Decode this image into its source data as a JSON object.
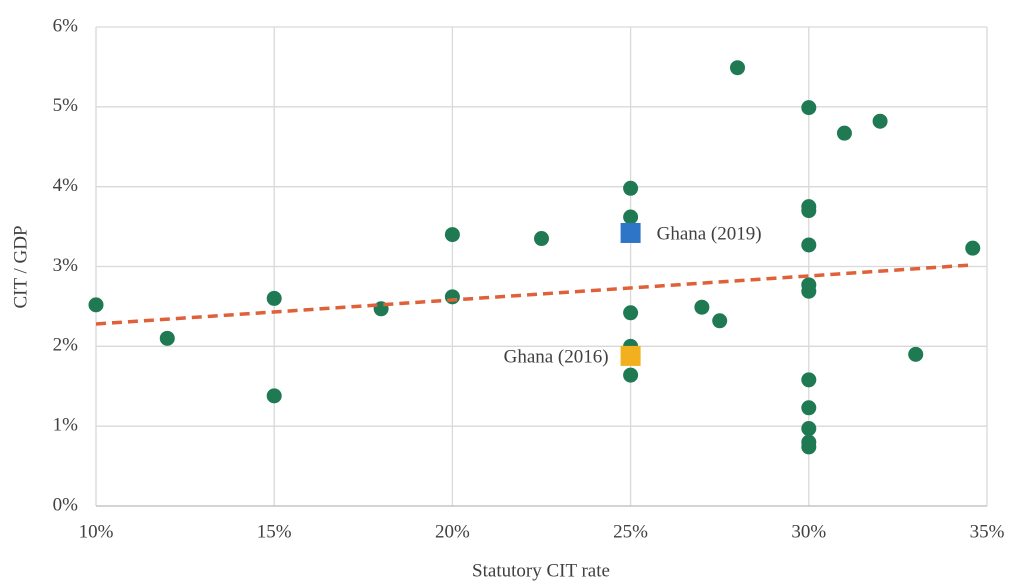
{
  "chart_data": {
    "type": "scatter",
    "xlabel": "Statutory CIT rate",
    "ylabel": "CIT / GDP",
    "xlim": [
      10,
      35
    ],
    "ylim": [
      0,
      6
    ],
    "xticks": [
      {
        "value": 10,
        "label": "10%"
      },
      {
        "value": 15,
        "label": "15%"
      },
      {
        "value": 20,
        "label": "20%"
      },
      {
        "value": 25,
        "label": "25%"
      },
      {
        "value": 30,
        "label": "30%"
      },
      {
        "value": 35,
        "label": "35%"
      }
    ],
    "yticks": [
      {
        "value": 0,
        "label": "0%"
      },
      {
        "value": 1,
        "label": "1%"
      },
      {
        "value": 2,
        "label": "2%"
      },
      {
        "value": 3,
        "label": "3%"
      },
      {
        "value": 4,
        "label": "4%"
      },
      {
        "value": 5,
        "label": "5%"
      },
      {
        "value": 6,
        "label": "6%"
      }
    ],
    "grid": true,
    "series": [
      {
        "color": "#1f7a54",
        "marker": "circle",
        "x": [
          10,
          12,
          15,
          15,
          18,
          20,
          20,
          22.5,
          25,
          25,
          25,
          25,
          25,
          27,
          27.5,
          28,
          30,
          30,
          30,
          30,
          30,
          30,
          30,
          30,
          30,
          30,
          30,
          31,
          32,
          33,
          34.6
        ],
        "values": [
          2.52,
          2.1,
          2.6,
          1.38,
          2.47,
          3.4,
          2.62,
          3.35,
          3.98,
          3.62,
          2.42,
          2.0,
          1.64,
          2.49,
          2.32,
          5.49,
          4.99,
          3.75,
          3.7,
          3.27,
          2.77,
          2.69,
          1.58,
          1.23,
          0.97,
          0.8,
          0.74,
          4.67,
          4.82,
          1.9,
          3.23
        ]
      },
      {
        "name": "Ghana (2019)",
        "color": "#2e75c8",
        "marker": "square",
        "x": [
          25
        ],
        "values": [
          3.42
        ]
      },
      {
        "name": "Ghana (2016)",
        "color": "#f2b01e",
        "marker": "square",
        "x": [
          25
        ],
        "values": [
          1.88
        ]
      },
      {
        "color": "#e0603a",
        "marker": "dashed-line",
        "x": [
          10,
          34.6
        ],
        "values": [
          2.28,
          3.02
        ]
      }
    ]
  }
}
